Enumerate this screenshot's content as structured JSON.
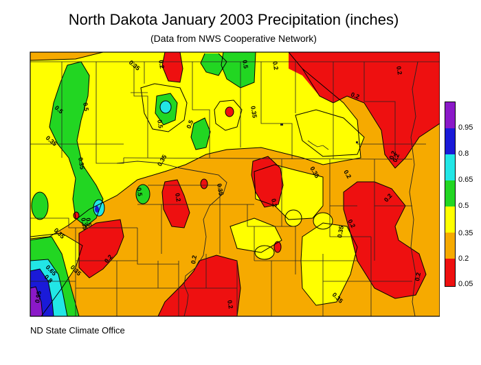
{
  "title": "North Dakota January 2003 Precipitation (inches)",
  "subtitle": "(Data from NWS Cooperative Network)",
  "credit": "ND State Climate Office",
  "legend": {
    "items": [
      {
        "label": "0.95",
        "color": "#8b19c8"
      },
      {
        "label": "0.8",
        "color": "#1a1ad8"
      },
      {
        "label": "0.65",
        "color": "#22e6e6"
      },
      {
        "label": "0.5",
        "color": "#22d622"
      },
      {
        "label": "0.35",
        "color": "#ffff00"
      },
      {
        "label": "0.2",
        "color": "#f6aa00"
      },
      {
        "label": "0.05",
        "color": "#ee1010"
      }
    ]
  },
  "contour_labels": {
    "a": "0.35",
    "b": "0.2",
    "c": "0.5",
    "d": "0.2",
    "e": "0.2",
    "f": "0.5",
    "g": "0.5",
    "h": "0.35",
    "i": "0.5",
    "j": "0.5",
    "k": "0.35",
    "l": "0.2",
    "m": "0.35",
    "n": "0.35",
    "o": "0.2",
    "p": "0.35",
    "q": "0.5",
    "r": "0.35",
    "s": "0.2",
    "t": "0.2",
    "u": "0.2",
    "v": "0.35",
    "w": "0.2",
    "x": "0.5",
    "y": "0.35",
    "z": "0.65",
    "aa": "0.8",
    "ab": "0.95",
    "ac": "0.35",
    "ad": "0.2",
    "ae": "0.2",
    "af": "0.2",
    "ag": "0.35",
    "ah": "0.2",
    "ai": "0.35",
    "aj": "0.2",
    "ak": "0.2"
  }
}
